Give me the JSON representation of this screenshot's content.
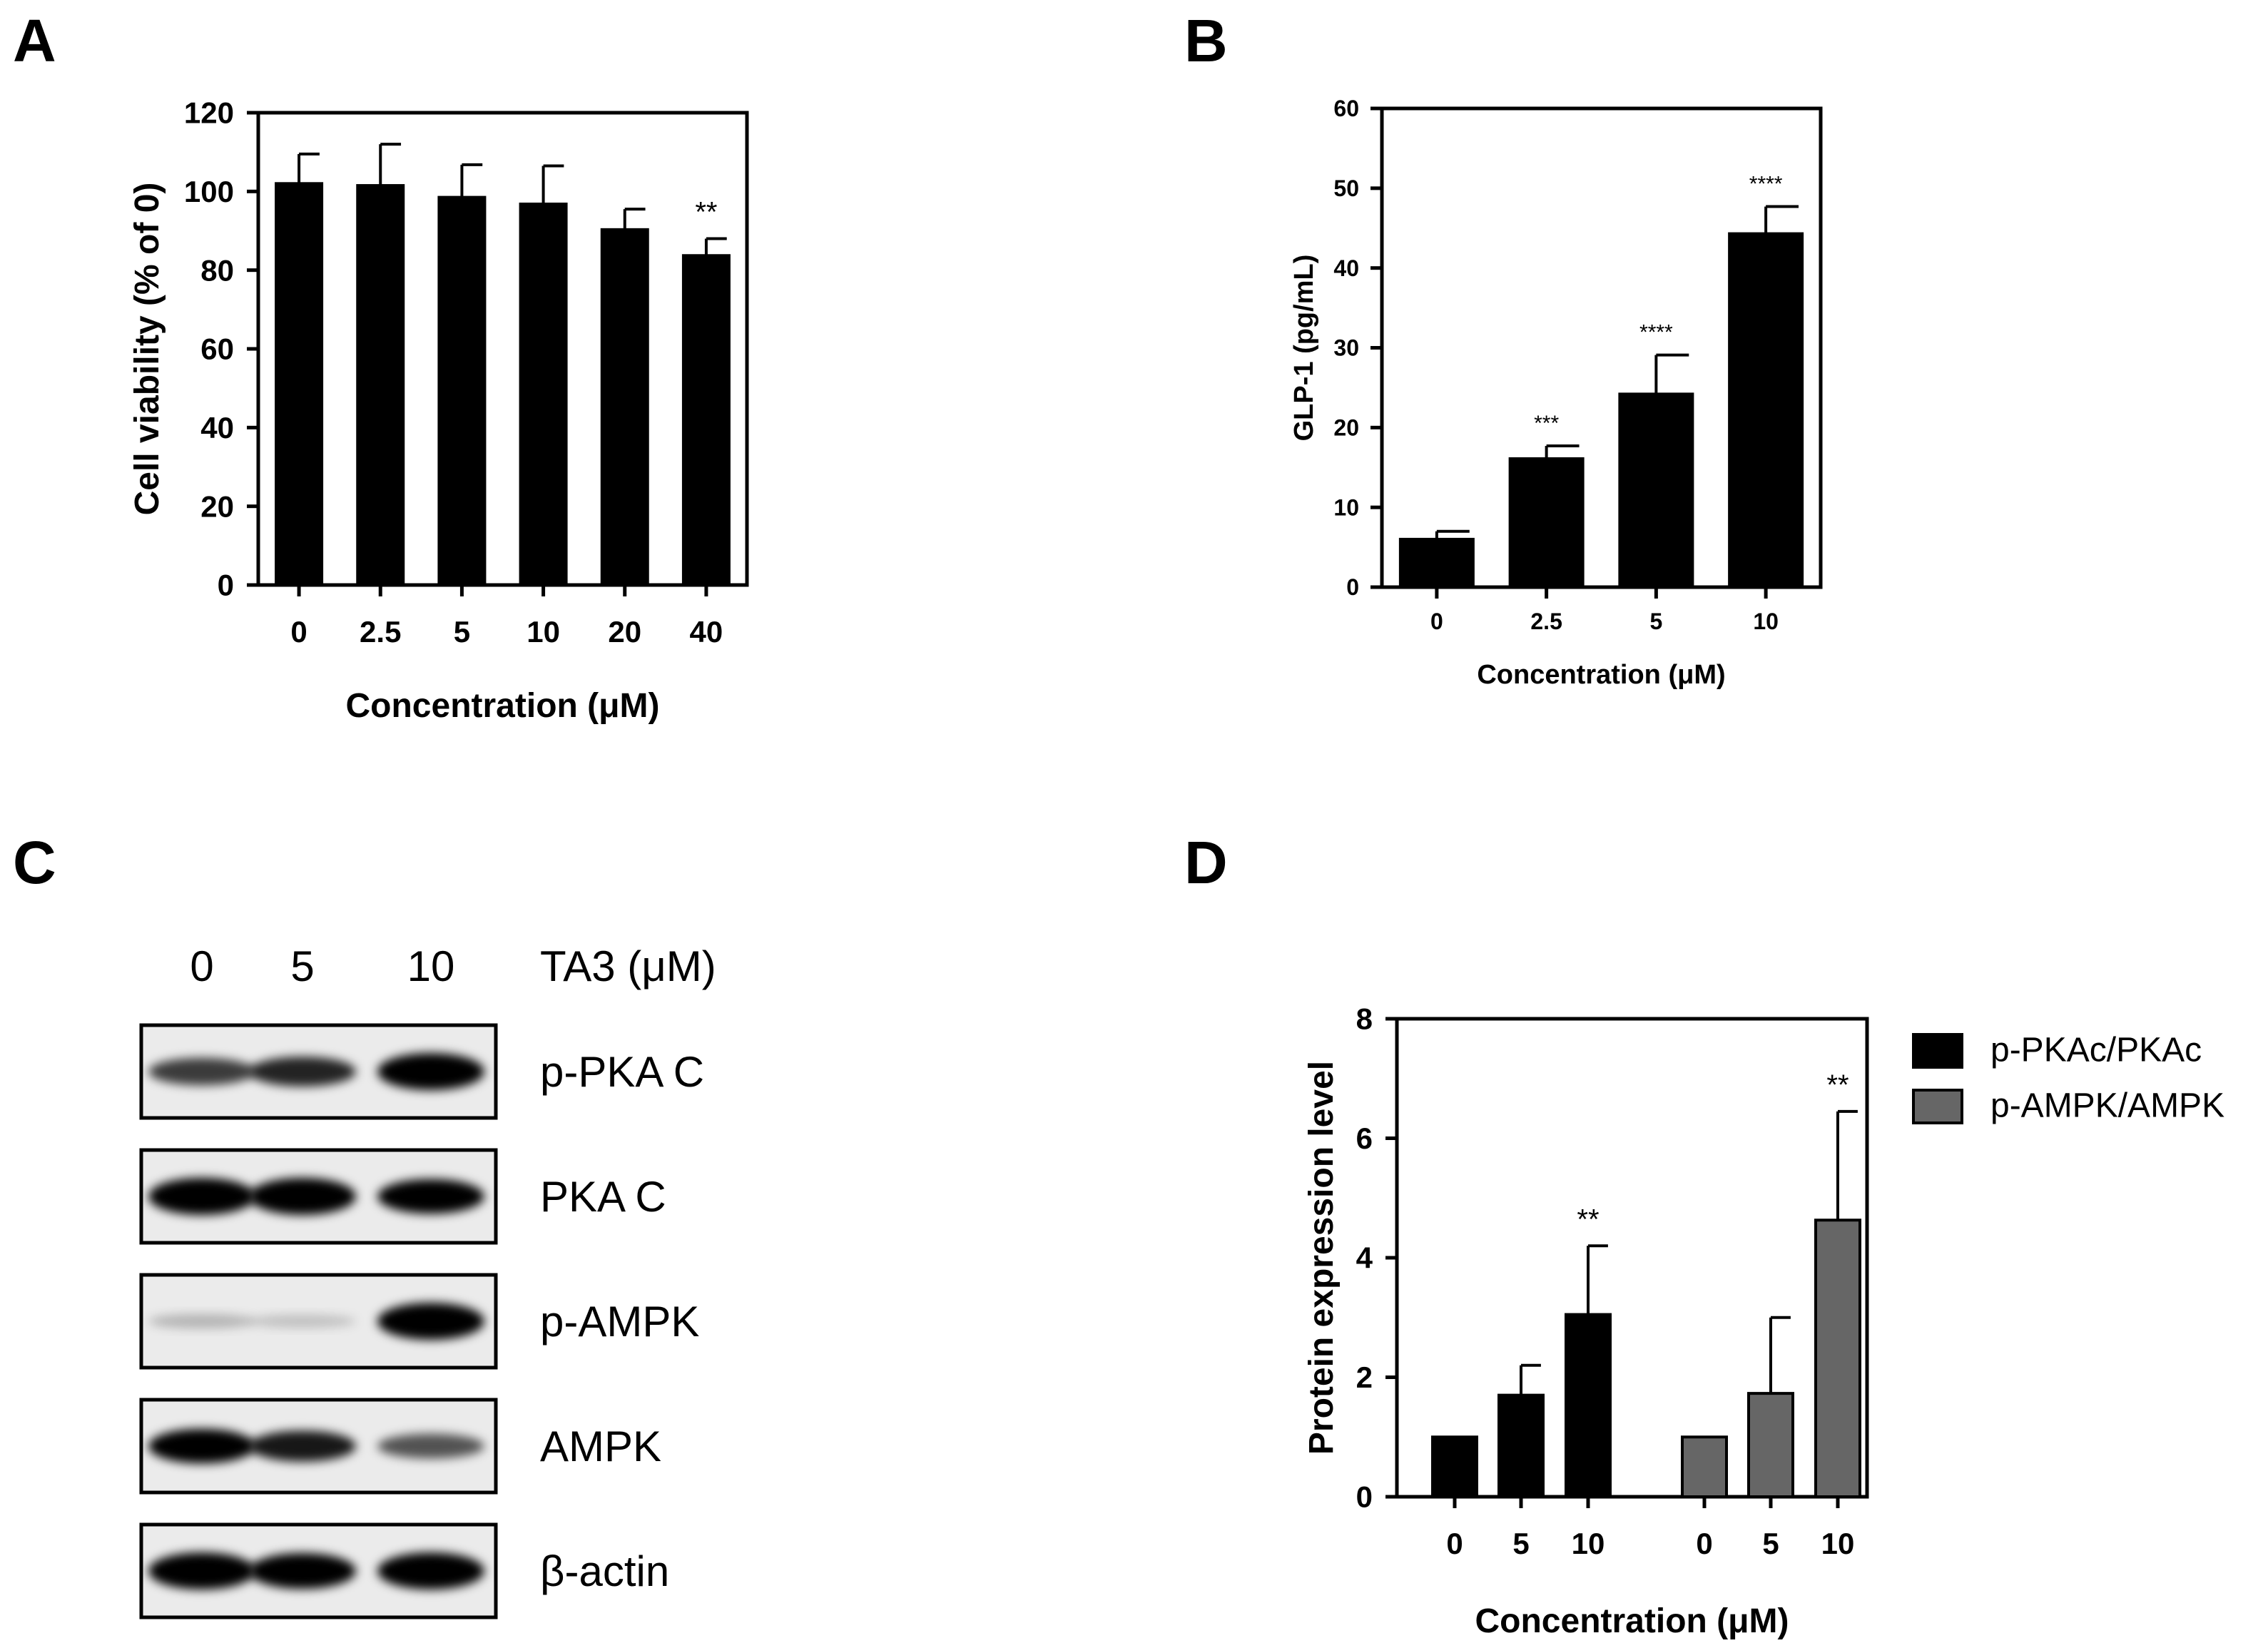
{
  "chart_data": [
    {
      "id": "A",
      "panel_label": "A",
      "type": "bar",
      "categories": [
        "0",
        "2.5",
        "5",
        "10",
        "20",
        "40"
      ],
      "series": [
        {
          "values": [
            102,
            101.5,
            98.5,
            96.8,
            90.3,
            83.7
          ],
          "error": [
            7.5,
            10.5,
            8.3,
            9.7,
            5.2,
            4.3
          ],
          "color": "#000000"
        }
      ],
      "annotations": [
        {
          "category": "40",
          "text": "**"
        }
      ],
      "xlabel": "Concentration (μM)",
      "ylabel": "Cell viability (% of 0)",
      "ylim": [
        0,
        120
      ],
      "yticks": [
        "0",
        "20",
        "40",
        "60",
        "80",
        "100",
        "120"
      ],
      "grid": false
    },
    {
      "id": "B",
      "panel_label": "B",
      "type": "bar",
      "categories": [
        "0",
        "2.5",
        "5",
        "10"
      ],
      "series": [
        {
          "values": [
            6.0,
            16.1,
            24.2,
            44.3
          ],
          "error": [
            1.0,
            1.6,
            4.9,
            3.4
          ],
          "color": "#000000"
        }
      ],
      "annotations": [
        {
          "category": "2.5",
          "text": "***"
        },
        {
          "category": "5",
          "text": "****"
        },
        {
          "category": "10",
          "text": "****"
        }
      ],
      "xlabel": "Concentration (μM)",
      "ylabel": "GLP-1 (pg/mL)",
      "ylim": [
        0,
        60
      ],
      "yticks": [
        "0",
        "10",
        "20",
        "30",
        "40",
        "50",
        "60"
      ],
      "grid": false
    },
    {
      "id": "D",
      "panel_label": "D",
      "type": "bar",
      "categories": [
        "0",
        "5",
        "10"
      ],
      "series": [
        {
          "name": "p-PKAc/PKAc",
          "values": [
            1.0,
            1.7,
            3.05
          ],
          "error": [
            0,
            0.5,
            1.15
          ],
          "color": "#000000"
        },
        {
          "name": "p-AMPK/AMPK",
          "values": [
            1.0,
            1.73,
            4.63
          ],
          "error": [
            0,
            1.27,
            1.82
          ],
          "color": "#666666"
        }
      ],
      "annotations": [
        {
          "series": 0,
          "category": "10",
          "text": "**"
        },
        {
          "series": 1,
          "category": "10",
          "text": "**"
        }
      ],
      "xlabel": "Concentration (μM)",
      "ylabel": "Protein expression level",
      "ylim": [
        0,
        8
      ],
      "yticks": [
        "0",
        "2",
        "4",
        "6",
        "8"
      ],
      "legend_position": "right",
      "grid": false
    }
  ],
  "western_blot": {
    "panel_label": "C",
    "lanes": [
      "0",
      "5",
      "10"
    ],
    "treatment_label": "TA3 (μM)",
    "rows": [
      {
        "label": "p-PKA C",
        "bands": [
          0.6,
          0.7,
          1.0
        ]
      },
      {
        "label": "PKA C",
        "bands": [
          1.0,
          1.0,
          0.9
        ]
      },
      {
        "label": "p-AMPK",
        "bands": [
          0.08,
          0.03,
          1.0
        ]
      },
      {
        "label": "AMPK",
        "bands": [
          0.9,
          0.75,
          0.5
        ]
      },
      {
        "label": "β-actin",
        "bands": [
          1.0,
          0.95,
          1.0
        ]
      }
    ]
  }
}
